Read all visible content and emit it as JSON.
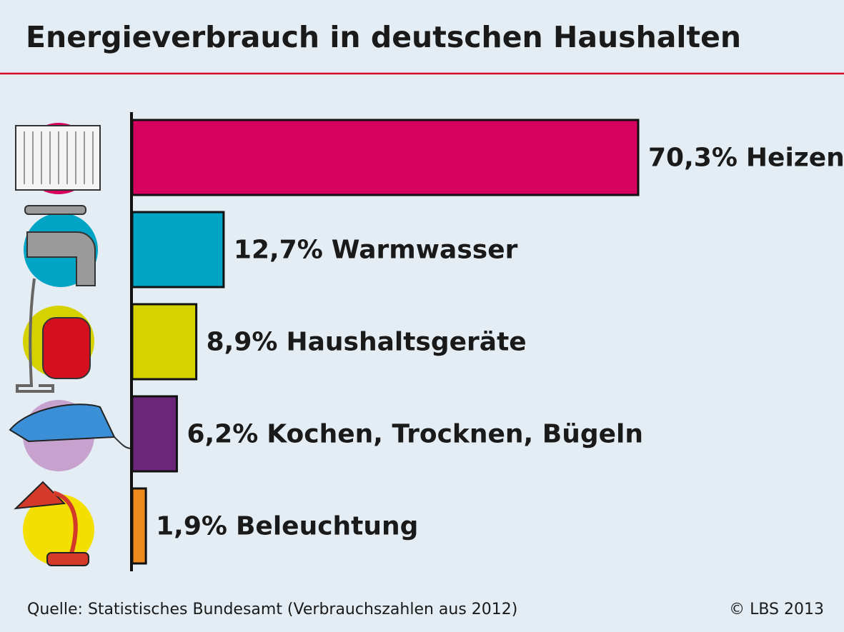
{
  "chart_data": {
    "type": "bar",
    "orientation": "horizontal",
    "title": "Energieverbrauch in deutschen Haushalten",
    "categories": [
      "Heizen",
      "Warmwasser",
      "Haushaltsgeräte",
      "Kochen, Trocknen, Bügeln",
      "Beleuchtung"
    ],
    "values": [
      70.3,
      12.7,
      8.9,
      6.2,
      1.9
    ],
    "value_labels": [
      "70,3%",
      "12,7%",
      "8,9%",
      "6,2%",
      "1,9%"
    ],
    "colors": [
      "#d6005f",
      "#00a5c6",
      "#d5d200",
      "#6b2679",
      "#ef8a1d"
    ],
    "source": "Quelle: Statistisches Bundesamt (Verbrauchszahlen aus 2012)",
    "copyright": "© LBS 2013"
  }
}
